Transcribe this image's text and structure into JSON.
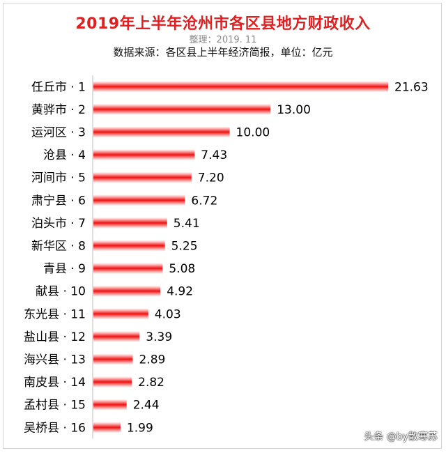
{
  "chart_data": {
    "type": "bar",
    "orientation": "horizontal",
    "title": "2019年上半年沧州市各区县地方财政收入",
    "subtitle": "整理：2019. 11",
    "source_note": "数据来源：各区县上半年经济简报，单位：亿元",
    "categories": [
      "任丘市 · 1",
      "黄骅市 · 2",
      "运河区 · 3",
      "沧县 · 4",
      "河间市 · 5",
      "肃宁县 · 6",
      "泊头市 · 7",
      "新华区 · 8",
      "青县 · 9",
      "献县 · 10",
      "东光县 · 11",
      "盐山县 · 12",
      "海兴县 · 13",
      "南皮县 · 14",
      "孟村县 · 15",
      "吴桥县 · 16"
    ],
    "values": [
      21.63,
      13.0,
      10.0,
      7.43,
      7.2,
      6.72,
      5.41,
      5.25,
      5.08,
      4.92,
      4.03,
      3.39,
      2.89,
      2.82,
      2.44,
      1.99
    ],
    "value_labels": [
      "21.63",
      "13.00",
      "10.00",
      "7.43",
      "7.20",
      "6.72",
      "5.41",
      "5.25",
      "5.08",
      "4.92",
      "4.03",
      "3.39",
      "2.89",
      "2.82",
      "2.44",
      "1.99"
    ],
    "xlim": [
      0,
      21.63
    ],
    "grid": false,
    "legend": "none",
    "bar_color": "#ee1111"
  },
  "watermark": "头条 @by散寒苏"
}
